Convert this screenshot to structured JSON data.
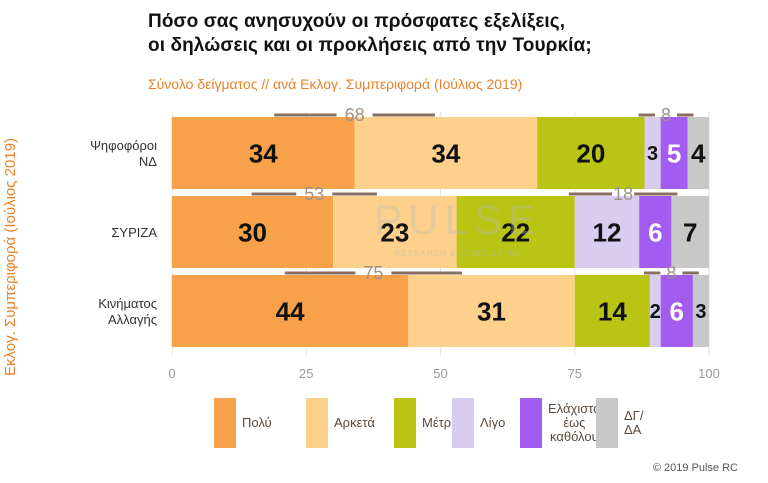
{
  "title": {
    "line1": "Πόσο σας ανησυχούν οι πρόσφατες εξελίξεις,",
    "line2": "οι δηλώσεις και οι προκλήσεις από την Τουρκία;"
  },
  "subtitle": "Σύνολο δείγματος // ανά Εκλογ. Συμπεριφορά (Ιούλιος 2019)",
  "side_label": "Εκλογ. Συμπεριφορά (Ιούλιος 2019)",
  "watermark": {
    "main": "PULSE",
    "sub": "RESEARCH & CONSULTING"
  },
  "credit": "© 2019 Pulse RC",
  "colors": {
    "Πολύ": "#f7a14a",
    "Αρκετά": "#fdd08c",
    "Μέτρια": "#b9c415",
    "Λίγο": "#d8ccef",
    "Ελάχιστα έως καθόλου": "#a25cf0",
    "ΔΓ/ΔΑ": "#c8c8c8"
  },
  "chart_data": {
    "type": "bar",
    "orientation": "horizontal",
    "stacked": true,
    "categories": [
      [
        "Ψηφοφόροι",
        "ΝΔ"
      ],
      [
        "ΣΥΡΙΖΑ"
      ],
      [
        "Κινήματος",
        "Αλλαγής"
      ]
    ],
    "series": [
      {
        "name": "Πολύ",
        "values": [
          34,
          30,
          44
        ]
      },
      {
        "name": "Αρκετά",
        "values": [
          34,
          23,
          31
        ]
      },
      {
        "name": "Μέτρια",
        "values": [
          20,
          22,
          14
        ]
      },
      {
        "name": "Λίγο",
        "values": [
          3,
          12,
          2
        ]
      },
      {
        "name": "Ελάχιστα έως καθόλου",
        "values": [
          5,
          6,
          6
        ]
      },
      {
        "name": "ΔΓ/ΔΑ",
        "values": [
          4,
          7,
          3
        ]
      }
    ],
    "totals_high": [
      68,
      53,
      75
    ],
    "totals_low": [
      8,
      18,
      8
    ],
    "xlim": [
      0,
      100
    ],
    "xticks": [
      0,
      25,
      50,
      75,
      100
    ],
    "legend": {
      "position": "bottom",
      "labels": [
        "Πολύ",
        "Αρκετά",
        "Μέτρια",
        "Λίγο",
        [
          "Ελάχιστα",
          "έως",
          "καθόλου"
        ],
        "ΔΓ/ΔΑ"
      ]
    }
  }
}
